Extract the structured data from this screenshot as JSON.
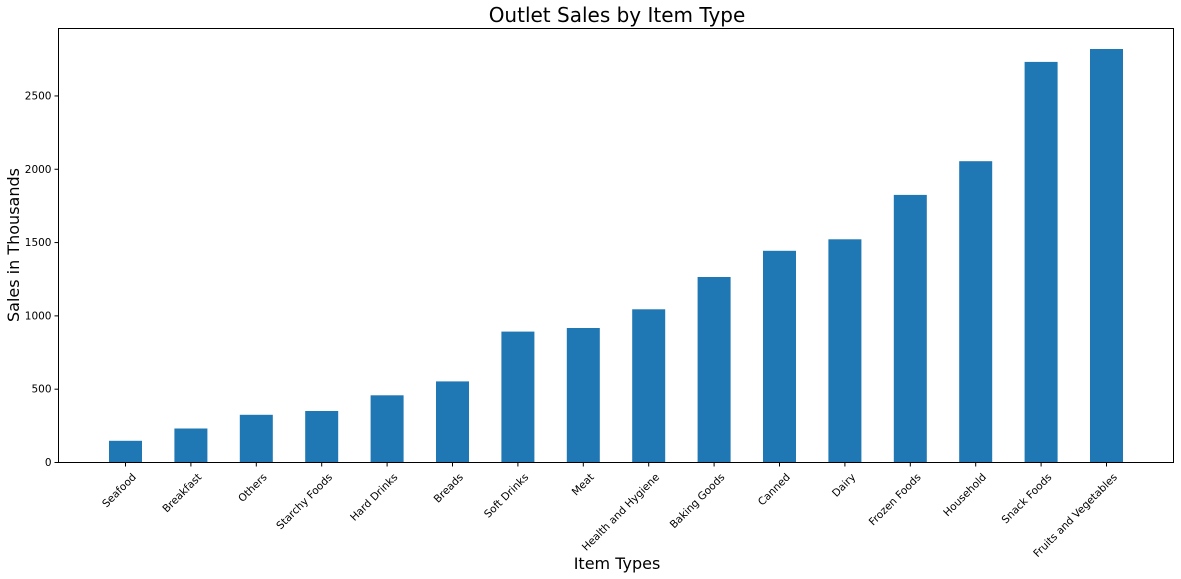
{
  "chart_data": {
    "type": "bar",
    "title": "Outlet Sales by Item Type",
    "xlabel": "Item Types",
    "ylabel": "Sales in Thousands",
    "categories": [
      "Seafood",
      "Breakfast",
      "Others",
      "Starchy Foods",
      "Hard Drinks",
      "Breads",
      "Soft Drinks",
      "Meat",
      "Health and Hygiene",
      "Baking Goods",
      "Canned",
      "Dairy",
      "Frozen Foods",
      "Household",
      "Snack Foods",
      "Fruits and Vegetables"
    ],
    "values": [
      148,
      232,
      325,
      351,
      458,
      553,
      893,
      917,
      1045,
      1265,
      1444,
      1522,
      1825,
      2055,
      2732,
      2820
    ],
    "yticks": [
      0,
      500,
      1000,
      1500,
      2000,
      2500
    ],
    "ylim": [
      0,
      2960
    ],
    "grid": false,
    "legend": "none",
    "bar_color": "#1f77b4"
  }
}
